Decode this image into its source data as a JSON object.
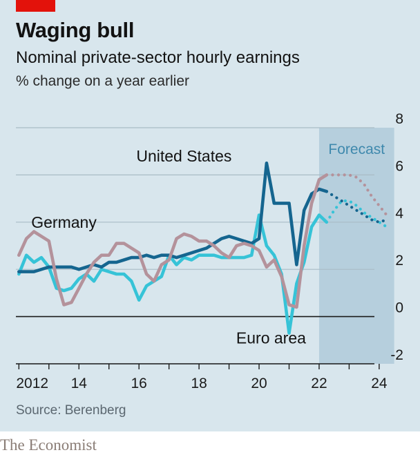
{
  "header": {
    "title": "Waging bull",
    "subtitle": "Nominal private-sector hourly earnings",
    "unit": "% change on a year earlier"
  },
  "footer": {
    "source": "Source: Berenberg",
    "brand": "The Economist"
  },
  "colors": {
    "background": "#d8e6ed",
    "forecast_band": "#b6cfdd",
    "united_states": "#15658f",
    "euro_area": "#36c3d7",
    "germany": "#b4929b",
    "brand_red": "#e3120b"
  },
  "chart_data": {
    "type": "line",
    "title": "Waging bull",
    "subtitle": "Nominal private-sector hourly earnings",
    "ylabel": "% change on a year earlier",
    "xlim": [
      2011.9,
      2024.9
    ],
    "ylim": [
      -2,
      8
    ],
    "yticks": [
      -2,
      0,
      2,
      4,
      6,
      8
    ],
    "xticks": [
      2012,
      2014,
      2016,
      2018,
      2020,
      2022,
      2024
    ],
    "xtick_labels": [
      "2012",
      "14",
      "16",
      "18",
      "20",
      "22",
      "24"
    ],
    "grid": true,
    "legend": "direct labels",
    "forecast": {
      "label": "Forecast",
      "start": 2022.0,
      "end": 2024.5
    },
    "series": [
      {
        "name": "United States",
        "color": "#15658f",
        "x": [
          2012.0,
          2012.25,
          2012.5,
          2012.75,
          2013.0,
          2013.25,
          2013.5,
          2013.75,
          2014.0,
          2014.25,
          2014.5,
          2014.75,
          2015.0,
          2015.25,
          2015.5,
          2015.75,
          2016.0,
          2016.25,
          2016.5,
          2016.75,
          2017.0,
          2017.25,
          2017.5,
          2017.75,
          2018.0,
          2018.25,
          2018.5,
          2018.75,
          2019.0,
          2019.25,
          2019.5,
          2019.75,
          2020.0,
          2020.25,
          2020.5,
          2020.75,
          2021.0,
          2021.25,
          2021.5,
          2021.75,
          2022.0,
          2022.25
        ],
        "y": [
          1.9,
          1.9,
          1.9,
          2.0,
          2.1,
          2.1,
          2.1,
          2.1,
          2.0,
          2.1,
          2.2,
          2.1,
          2.3,
          2.3,
          2.4,
          2.5,
          2.5,
          2.6,
          2.5,
          2.6,
          2.6,
          2.5,
          2.6,
          2.7,
          2.8,
          2.9,
          3.1,
          3.3,
          3.4,
          3.3,
          3.2,
          3.1,
          3.3,
          6.5,
          4.8,
          4.8,
          4.8,
          2.2,
          4.5,
          5.2,
          5.4,
          5.3
        ]
      },
      {
        "name": "United States forecast",
        "color": "#15658f",
        "x": [
          2022.25,
          2022.5,
          2022.75,
          2023.0,
          2023.25,
          2023.5,
          2023.75,
          2024.0,
          2024.25
        ],
        "y": [
          5.3,
          5.1,
          4.9,
          4.7,
          4.5,
          4.3,
          4.1,
          4.0,
          4.1
        ]
      },
      {
        "name": "Euro area",
        "color": "#36c3d7",
        "x": [
          2012.0,
          2012.25,
          2012.5,
          2012.75,
          2013.0,
          2013.25,
          2013.5,
          2013.75,
          2014.0,
          2014.25,
          2014.5,
          2014.75,
          2015.0,
          2015.25,
          2015.5,
          2015.75,
          2016.0,
          2016.25,
          2016.5,
          2016.75,
          2017.0,
          2017.25,
          2017.5,
          2017.75,
          2018.0,
          2018.25,
          2018.5,
          2018.75,
          2019.0,
          2019.25,
          2019.5,
          2019.75,
          2020.0,
          2020.25,
          2020.5,
          2020.75,
          2021.0,
          2021.25,
          2021.5,
          2021.75,
          2022.0,
          2022.25
        ],
        "y": [
          1.8,
          2.6,
          2.3,
          2.5,
          2.1,
          1.2,
          1.1,
          1.2,
          1.6,
          1.8,
          1.5,
          2.0,
          1.9,
          1.8,
          1.8,
          1.5,
          0.7,
          1.3,
          1.5,
          1.7,
          2.6,
          2.2,
          2.5,
          2.4,
          2.6,
          2.6,
          2.6,
          2.5,
          2.5,
          2.5,
          2.5,
          2.6,
          4.3,
          3.0,
          2.6,
          1.8,
          -0.7,
          1.4,
          2.3,
          3.8,
          4.3,
          4.0
        ]
      },
      {
        "name": "Euro area forecast",
        "color": "#36c3d7",
        "x": [
          2022.25,
          2022.5,
          2022.75,
          2023.0,
          2023.25,
          2023.5,
          2023.75,
          2024.0,
          2024.25
        ],
        "y": [
          4.0,
          4.5,
          4.9,
          4.9,
          4.7,
          4.4,
          4.2,
          4.0,
          3.8
        ]
      },
      {
        "name": "Germany",
        "color": "#b4929b",
        "x": [
          2012.0,
          2012.25,
          2012.5,
          2012.75,
          2013.0,
          2013.25,
          2013.5,
          2013.75,
          2014.0,
          2014.25,
          2014.5,
          2014.75,
          2015.0,
          2015.25,
          2015.5,
          2015.75,
          2016.0,
          2016.25,
          2016.5,
          2016.75,
          2017.0,
          2017.25,
          2017.5,
          2017.75,
          2018.0,
          2018.25,
          2018.5,
          2018.75,
          2019.0,
          2019.25,
          2019.5,
          2019.75,
          2020.0,
          2020.25,
          2020.5,
          2020.75,
          2021.0,
          2021.25,
          2021.5,
          2021.75,
          2022.0,
          2022.25
        ],
        "y": [
          2.6,
          3.3,
          3.6,
          3.4,
          3.2,
          1.6,
          0.5,
          0.6,
          1.2,
          1.8,
          2.3,
          2.6,
          2.6,
          3.1,
          3.1,
          2.9,
          2.7,
          1.8,
          1.5,
          2.2,
          2.4,
          3.3,
          3.5,
          3.4,
          3.2,
          3.2,
          3.0,
          2.7,
          2.5,
          3.0,
          3.1,
          3.0,
          2.8,
          2.1,
          2.4,
          1.7,
          0.5,
          0.4,
          3.0,
          4.8,
          5.8,
          6.0
        ]
      },
      {
        "name": "Germany forecast",
        "color": "#b4929b",
        "x": [
          2022.25,
          2022.5,
          2022.75,
          2023.0,
          2023.25,
          2023.5,
          2023.75,
          2024.0,
          2024.25
        ],
        "y": [
          6.0,
          6.0,
          6.0,
          6.0,
          5.9,
          5.6,
          5.1,
          4.7,
          4.3
        ]
      }
    ],
    "labels": [
      {
        "text": "United States",
        "x": 2017.5,
        "y": 6.8
      },
      {
        "text": "Germany",
        "x": 2013.5,
        "y": 4.0
      },
      {
        "text": "Euro area",
        "x": 2020.4,
        "y": -0.9
      }
    ]
  }
}
